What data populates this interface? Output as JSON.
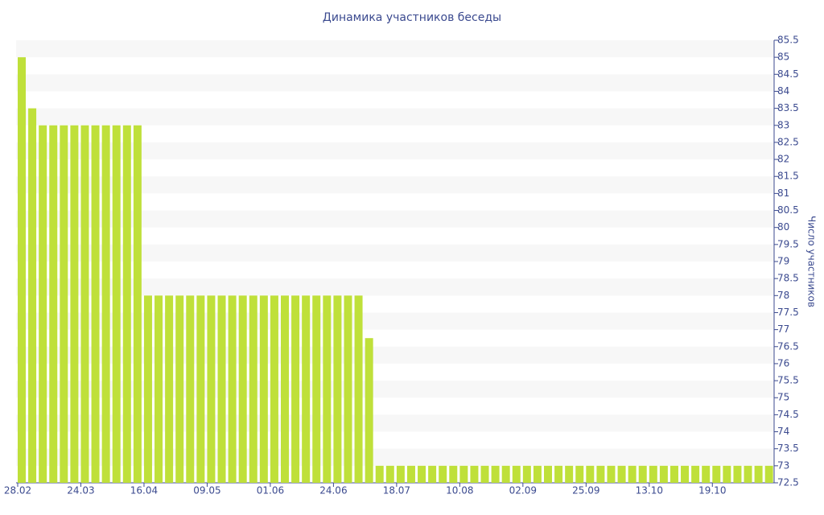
{
  "chart_data": {
    "type": "bar",
    "title": "Динамика участников беседы",
    "y_label": "Число участников",
    "categories": [
      "28.02",
      null,
      null,
      null,
      null,
      null,
      "24.03",
      null,
      null,
      null,
      null,
      null,
      "16.04",
      null,
      null,
      null,
      null,
      null,
      "09.05",
      null,
      null,
      null,
      null,
      null,
      "01.06",
      null,
      null,
      null,
      null,
      null,
      "24.06",
      null,
      null,
      null,
      null,
      null,
      "18.07",
      null,
      null,
      null,
      null,
      null,
      "10.08",
      null,
      null,
      null,
      null,
      null,
      "02.09",
      null,
      null,
      null,
      null,
      null,
      "25.09",
      null,
      null,
      null,
      null,
      null,
      "13.10",
      null,
      null,
      null,
      null,
      null,
      "19.10",
      null,
      null,
      null,
      null,
      null
    ],
    "values": [
      85,
      83.5,
      83,
      83,
      83,
      83,
      83,
      83,
      83,
      83,
      83,
      83,
      78,
      78,
      78,
      78,
      78,
      78,
      78,
      78,
      78,
      78,
      78,
      78,
      78,
      78,
      78,
      78,
      78,
      78,
      78,
      78,
      78,
      76.75,
      73,
      73,
      73,
      73,
      73,
      73,
      73,
      73,
      73,
      73,
      73,
      73,
      73,
      73,
      73,
      73,
      73,
      73,
      73,
      73,
      73,
      73,
      73,
      73,
      73,
      73,
      73,
      73,
      73,
      73,
      73,
      73,
      73,
      73,
      73,
      73,
      73,
      73
    ],
    "color": "#bfe03a",
    "ylim": [
      72.5,
      85.5
    ],
    "yticks": [
      72.5,
      73,
      73.5,
      74,
      74.5,
      75,
      75.5,
      76,
      76.5,
      77,
      77.5,
      78,
      78.5,
      79,
      79.5,
      80,
      80.5,
      81,
      81.5,
      82,
      82.5,
      83,
      83.5,
      84,
      84.5,
      85,
      85.5
    ],
    "grid": true
  }
}
